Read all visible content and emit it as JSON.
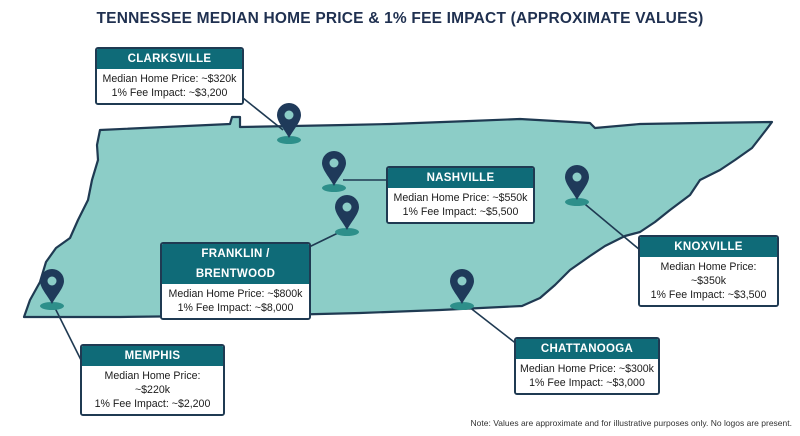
{
  "title": "TENNESSEE MEDIAN HOME PRICE & 1% FEE IMPACT (APPROXIMATE VALUES)",
  "note": "Note: Values are approximate and for illustrative purposes only. No logos are present.",
  "colors": {
    "state_fill": "#8ccdc7",
    "state_outline": "#1f3a52",
    "pin": "#1f3a5a",
    "pin_shadow": "#2d8f8a",
    "card_header": "#0f6b78"
  },
  "cities": [
    {
      "id": "clarksville",
      "name": "CLARKSVILLE",
      "price_line": "Median Home Price: ~$320k",
      "fee_line": "1% Fee Impact: ~$3,200"
    },
    {
      "id": "nashville",
      "name": "NASHVILLE",
      "price_line": "Median Home Price: ~$550k",
      "fee_line": "1% Fee Impact: ~$5,500"
    },
    {
      "id": "franklin-brentwood",
      "name": "FRANKLIN / BRENTWOOD",
      "price_line": "Median Home Price: ~$800k",
      "fee_line": "1% Fee Impact: ~$8,000"
    },
    {
      "id": "knoxville",
      "name": "KNOXVILLE",
      "price_line": "Median Home Price: ~$350k",
      "fee_line": "1% Fee Impact: ~$3,500"
    },
    {
      "id": "memphis",
      "name": "MEMPHIS",
      "price_line": "Median Home Price: ~$220k",
      "fee_line": "1% Fee Impact: ~$2,200"
    },
    {
      "id": "chattanooga",
      "name": "CHATTANOOGA",
      "price_line": "Median Home Price: ~$300k",
      "fee_line": "1% Fee Impact: ~$3,000"
    }
  ]
}
